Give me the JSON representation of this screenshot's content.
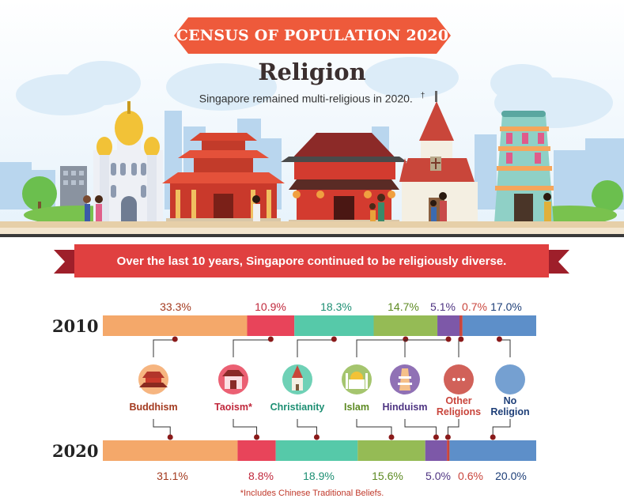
{
  "banner": {
    "title": "CENSUS OF POPULATION 2020"
  },
  "heading": "Religion",
  "subtitle": "Singapore remained multi-religious in 2020.",
  "subtitle_mark": "†",
  "ribbon": {
    "text": "Over the last 10 years, Singapore continued to be religiously diverse."
  },
  "footnote": "*Includes Chinese Traditional Beliefs.",
  "colors": {
    "banner": "#ee5a3b",
    "ribbon": "#e04040",
    "ribbon_dark": "#9e1f2a",
    "buddhism": "#f4a86a",
    "taoism": "#e8445a",
    "christianity": "#56c9a9",
    "islam": "#95bb55",
    "hinduism": "#7d58a8",
    "other": "#c9453c",
    "none": "#5d8fc9"
  },
  "chart_data": {
    "type": "bar",
    "orientation": "horizontal-stacked",
    "title": "Religion",
    "categories": [
      "2010",
      "2020"
    ],
    "series": [
      {
        "name": "Buddhism",
        "key": "buddhism",
        "values": [
          33.3,
          31.1
        ],
        "labels": [
          "33.3%",
          "31.1%"
        ]
      },
      {
        "name": "Taoism*",
        "key": "taoism",
        "values": [
          10.9,
          8.8
        ],
        "labels": [
          "10.9%",
          "8.8%"
        ]
      },
      {
        "name": "Christianity",
        "key": "christianity",
        "values": [
          18.3,
          18.9
        ],
        "labels": [
          "18.3%",
          "18.9%"
        ]
      },
      {
        "name": "Islam",
        "key": "islam",
        "values": [
          14.7,
          15.6
        ],
        "labels": [
          "14.7%",
          "15.6%"
        ]
      },
      {
        "name": "Hinduism",
        "key": "hinduism",
        "values": [
          5.1,
          5.0
        ],
        "labels": [
          "5.1%",
          "5.0%"
        ]
      },
      {
        "name": "Other Religions",
        "key": "other",
        "values": [
          0.7,
          0.6
        ],
        "labels": [
          "0.7%",
          "0.6%"
        ]
      },
      {
        "name": "No Religion",
        "key": "none",
        "values": [
          17.0,
          20.0
        ],
        "labels": [
          "17.0%",
          "20.0%"
        ]
      }
    ],
    "legend": [
      {
        "line1": "Buddhism",
        "line2": ""
      },
      {
        "line1": "Taoism*",
        "line2": ""
      },
      {
        "line1": "Christianity",
        "line2": ""
      },
      {
        "line1": "Islam",
        "line2": ""
      },
      {
        "line1": "Hinduism",
        "line2": ""
      },
      {
        "line1": "Other",
        "line2": "Religions"
      },
      {
        "line1": "No",
        "line2": "Religion"
      }
    ],
    "xlim": [
      0,
      100
    ]
  }
}
